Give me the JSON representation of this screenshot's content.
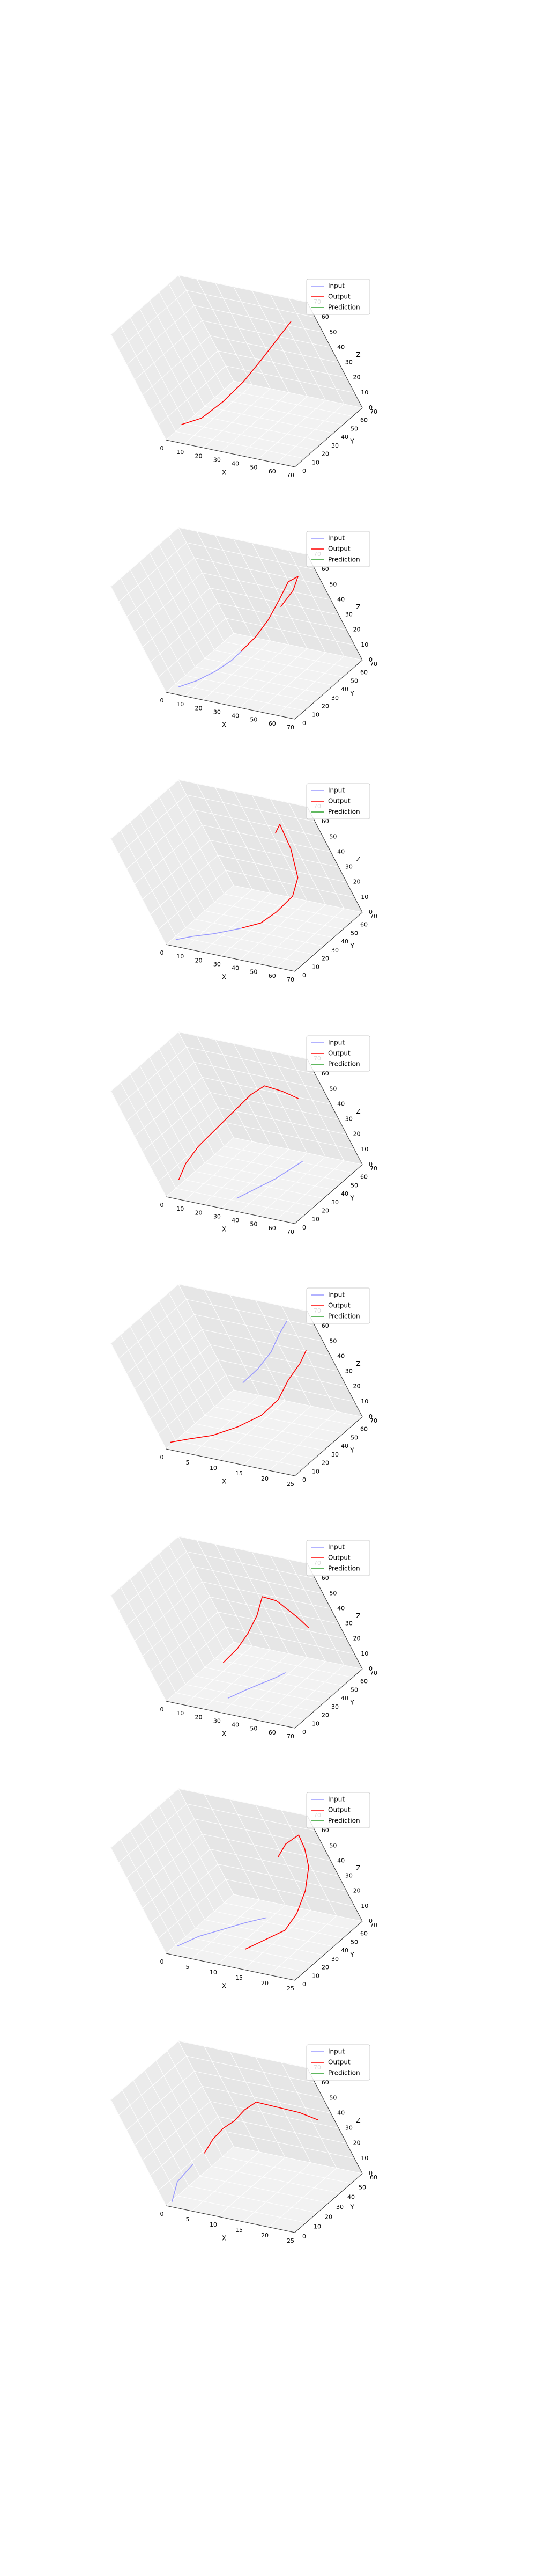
{
  "chart_data": [
    {
      "type": "line3d",
      "xlabel": "X",
      "ylabel": "Y",
      "zlabel": "Z",
      "xticks": [
        0,
        10,
        20,
        30,
        40,
        50,
        60,
        70
      ],
      "yticks": [
        0,
        10,
        20,
        30,
        40,
        50,
        60,
        70
      ],
      "zticks": [
        0,
        10,
        20,
        30,
        40,
        50,
        60,
        70
      ],
      "xlim": [
        0,
        70
      ],
      "ylim": [
        0,
        70
      ],
      "zlim": [
        0,
        70
      ],
      "legend": [
        "Input",
        "Output",
        "Prediction"
      ],
      "legend_position": "top-right",
      "grid": true,
      "series": [
        {
          "name": "Input",
          "color": "#9999ff",
          "points": []
        },
        {
          "name": "Output",
          "color": "#ff0000",
          "points": [
            [
              10,
              5,
              10
            ],
            [
              20,
              10,
              14
            ],
            [
              30,
              20,
              22
            ],
            [
              40,
              30,
              32
            ],
            [
              50,
              40,
              44
            ],
            [
              58,
              48,
              54
            ],
            [
              66,
              56,
              64
            ]
          ]
        },
        {
          "name": "Prediction",
          "color": "#2ca02c",
          "points": []
        }
      ]
    },
    {
      "type": "line3d",
      "xlabel": "X",
      "ylabel": "Y",
      "zlabel": "Z",
      "xticks": [
        0,
        10,
        20,
        30,
        40,
        50,
        60,
        70
      ],
      "yticks": [
        0,
        10,
        20,
        30,
        40,
        50,
        60,
        70
      ],
      "zticks": [
        0,
        10,
        20,
        30,
        40,
        50,
        60,
        70
      ],
      "xlim": [
        0,
        70
      ],
      "ylim": [
        0,
        70
      ],
      "zlim": [
        0,
        70
      ],
      "legend": [
        "Input",
        "Output",
        "Prediction"
      ],
      "legend_position": "top-right",
      "grid": true,
      "series": [
        {
          "name": "Input",
          "color": "#9999ff",
          "points": [
            [
              5,
              5,
              2
            ],
            [
              12,
              12,
              4
            ],
            [
              20,
              20,
              8
            ],
            [
              26,
              28,
              12
            ],
            [
              30,
              34,
              16
            ]
          ]
        },
        {
          "name": "Output",
          "color": "#ff0000",
          "points": [
            [
              30,
              34,
              16
            ],
            [
              38,
              40,
              24
            ],
            [
              46,
              46,
              34
            ],
            [
              54,
              52,
              46
            ],
            [
              60,
              58,
              56
            ],
            [
              66,
              60,
              60
            ],
            [
              62,
              56,
              52
            ],
            [
              56,
              48,
              44
            ]
          ]
        },
        {
          "name": "Prediction",
          "color": "#2ca02c",
          "points": []
        }
      ]
    },
    {
      "type": "line3d",
      "xlabel": "X",
      "ylabel": "Y",
      "zlabel": "Z",
      "xticks": [
        0,
        10,
        20,
        30,
        40,
        50,
        60,
        70
      ],
      "yticks": [
        0,
        10,
        20,
        30,
        40,
        50,
        60,
        70
      ],
      "zticks": [
        0,
        10,
        20,
        30,
        40,
        50,
        60,
        70
      ],
      "xlim": [
        0,
        70
      ],
      "ylim": [
        0,
        70
      ],
      "zlim": [
        0,
        70
      ],
      "legend": [
        "Input",
        "Output",
        "Prediction"
      ],
      "legend_position": "top-right",
      "grid": true,
      "series": [
        {
          "name": "Input",
          "color": "#9999ff",
          "points": [
            [
              4,
              4,
              2
            ],
            [
              12,
              8,
              4
            ],
            [
              22,
              12,
              6
            ],
            [
              30,
              16,
              8
            ],
            [
              36,
              18,
              10
            ]
          ]
        },
        {
          "name": "Output",
          "color": "#ff0000",
          "points": [
            [
              36,
              18,
              10
            ],
            [
              44,
              24,
              12
            ],
            [
              52,
              30,
              18
            ],
            [
              60,
              38,
              26
            ],
            [
              64,
              44,
              36
            ],
            [
              62,
              52,
              50
            ],
            [
              58,
              58,
              62
            ],
            [
              54,
              56,
              56
            ]
          ]
        },
        {
          "name": "Prediction",
          "color": "#2ca02c",
          "points": []
        }
      ]
    },
    {
      "type": "line3d",
      "xlabel": "X",
      "ylabel": "Y",
      "zlabel": "Z",
      "xticks": [
        0,
        10,
        20,
        30,
        40,
        50,
        60,
        70
      ],
      "yticks": [
        0,
        10,
        20,
        30,
        40,
        50,
        60,
        70
      ],
      "zticks": [
        0,
        10,
        20,
        30,
        40,
        50,
        60,
        70
      ],
      "xlim": [
        0,
        70
      ],
      "ylim": [
        0,
        70
      ],
      "zlim": [
        0,
        70
      ],
      "legend": [
        "Input",
        "Output",
        "Prediction"
      ],
      "legend_position": "top-right",
      "grid": true,
      "series": [
        {
          "name": "Input",
          "color": "#9999ff",
          "points": [
            [
              34,
              10,
              2
            ],
            [
              42,
              18,
              6
            ],
            [
              50,
              26,
              10
            ],
            [
              56,
              32,
              14
            ],
            [
              62,
              38,
              18
            ]
          ]
        },
        {
          "name": "Output",
          "color": "#ff0000",
          "points": [
            [
              8,
              6,
              10
            ],
            [
              14,
              10,
              20
            ],
            [
              22,
              16,
              30
            ],
            [
              32,
              24,
              40
            ],
            [
              42,
              32,
              50
            ],
            [
              50,
              40,
              58
            ],
            [
              56,
              46,
              62
            ],
            [
              60,
              52,
              56
            ],
            [
              64,
              56,
              50
            ]
          ]
        },
        {
          "name": "Prediction",
          "color": "#2ca02c",
          "points": []
        }
      ]
    },
    {
      "type": "line3d",
      "xlabel": "X",
      "ylabel": "Y",
      "zlabel": "Z",
      "xticks": [
        0,
        5,
        10,
        15,
        20,
        25
      ],
      "yticks": [
        0,
        10,
        20,
        30,
        40,
        50,
        60,
        70
      ],
      "zticks": [
        0,
        10,
        20,
        30,
        40,
        50,
        60,
        70
      ],
      "xlim": [
        0,
        25
      ],
      "ylim": [
        0,
        70
      ],
      "zlim": [
        0,
        70
      ],
      "legend": [
        "Input",
        "Output",
        "Prediction"
      ],
      "legend_position": "top-right",
      "grid": true,
      "series": [
        {
          "name": "Input",
          "color": "#9999ff",
          "points": [
            [
              12,
              40,
              30
            ],
            [
              15,
              46,
              38
            ],
            [
              18,
              52,
              48
            ],
            [
              20,
              58,
              58
            ],
            [
              22,
              62,
              66
            ]
          ]
        },
        {
          "name": "Output",
          "color": "#ff0000",
          "points": [
            [
              1,
              2,
              4
            ],
            [
              4,
              6,
              6
            ],
            [
              8,
              12,
              8
            ],
            [
              12,
              20,
              12
            ],
            [
              16,
              28,
              18
            ],
            [
              19,
              36,
              26
            ],
            [
              21,
              44,
              36
            ],
            [
              23,
              52,
              44
            ],
            [
              24,
              58,
              50
            ]
          ]
        },
        {
          "name": "Prediction",
          "color": "#2ca02c",
          "points": []
        }
      ]
    },
    {
      "type": "line3d",
      "xlabel": "X",
      "ylabel": "Y",
      "zlabel": "Z",
      "xticks": [
        0,
        10,
        20,
        30,
        40,
        50,
        60,
        70
      ],
      "yticks": [
        0,
        10,
        20,
        30,
        40,
        50,
        60,
        70
      ],
      "zticks": [
        0,
        10,
        20,
        30,
        40,
        50,
        60,
        70
      ],
      "xlim": [
        0,
        70
      ],
      "ylim": [
        0,
        70
      ],
      "zlim": [
        0,
        70
      ],
      "legend": [
        "Input",
        "Output",
        "Prediction"
      ],
      "legend_position": "top-right",
      "grid": true,
      "series": [
        {
          "name": "Input",
          "color": "#9999ff",
          "points": [
            [
              30,
              10,
              4
            ],
            [
              38,
              16,
              8
            ],
            [
              46,
              20,
              12
            ],
            [
              54,
              24,
              16
            ],
            [
              58,
              28,
              18
            ]
          ]
        },
        {
          "name": "Output",
          "color": "#ff0000",
          "points": [
            [
              30,
              20,
              22
            ],
            [
              38,
              26,
              30
            ],
            [
              46,
              30,
              40
            ],
            [
              52,
              36,
              50
            ],
            [
              56,
              42,
              60
            ],
            [
              60,
              46,
              56
            ],
            [
              64,
              50,
              44
            ],
            [
              66,
              52,
              36
            ]
          ]
        },
        {
          "name": "Prediction",
          "color": "#2ca02c",
          "points": []
        }
      ]
    },
    {
      "type": "line3d",
      "xlabel": "X",
      "ylabel": "Y",
      "zlabel": "Z",
      "xticks": [
        0,
        5,
        10,
        15,
        20,
        25
      ],
      "yticks": [
        0,
        10,
        20,
        30,
        40,
        50,
        60,
        70
      ],
      "zticks": [
        0,
        10,
        20,
        30,
        40,
        50,
        60,
        70
      ],
      "xlim": [
        0,
        25
      ],
      "ylim": [
        0,
        70
      ],
      "zlim": [
        0,
        70
      ],
      "legend": [
        "Input",
        "Output",
        "Prediction"
      ],
      "legend_position": "top-right",
      "grid": true,
      "series": [
        {
          "name": "Input",
          "color": "#9999ff",
          "points": [
            [
              2,
              4,
              4
            ],
            [
              6,
              10,
              10
            ],
            [
              10,
              16,
              14
            ],
            [
              14,
              22,
              18
            ],
            [
              18,
              26,
              22
            ]
          ]
        },
        {
          "name": "Output",
          "color": "#ff0000",
          "points": [
            [
              14,
              12,
              6
            ],
            [
              17,
              20,
              10
            ],
            [
              20,
              28,
              14
            ],
            [
              22,
              36,
              22
            ],
            [
              24,
              44,
              34
            ],
            [
              25,
              52,
              46
            ],
            [
              25,
              56,
              56
            ],
            [
              24,
              60,
              62
            ],
            [
              22,
              54,
              58
            ],
            [
              20,
              50,
              50
            ]
          ]
        },
        {
          "name": "Prediction",
          "color": "#2ca02c",
          "points": []
        }
      ]
    },
    {
      "type": "line3d",
      "xlabel": "X",
      "ylabel": "Y",
      "zlabel": "Z",
      "xticks": [
        0,
        5,
        10,
        15,
        20,
        25
      ],
      "yticks": [
        0,
        10,
        20,
        30,
        40,
        50,
        60
      ],
      "zticks": [
        0,
        10,
        20,
        30,
        40,
        50,
        60,
        70
      ],
      "xlim": [
        0,
        25
      ],
      "ylim": [
        0,
        60
      ],
      "zlim": [
        0,
        70
      ],
      "legend": [
        "Input",
        "Output",
        "Prediction"
      ],
      "legend_position": "top-right",
      "grid": true,
      "series": [
        {
          "name": "Input",
          "color": "#9999ff",
          "points": [
            [
              1,
              2,
              2
            ],
            [
              2,
              4,
              8
            ],
            [
              3,
              6,
              14
            ],
            [
              5,
              8,
              20
            ],
            [
              7,
              10,
              26
            ]
          ]
        },
        {
          "name": "Output",
          "color": "#ff0000",
          "points": [
            [
              10,
              12,
              34
            ],
            [
              12,
              16,
              42
            ],
            [
              14,
              20,
              48
            ],
            [
              16,
              24,
              52
            ],
            [
              18,
              28,
              58
            ],
            [
              20,
              32,
              62
            ],
            [
              22,
              38,
              56
            ],
            [
              24,
              44,
              50
            ],
            [
              25,
              50,
              42
            ]
          ]
        },
        {
          "name": "Prediction",
          "color": "#2ca02c",
          "points": []
        }
      ]
    }
  ]
}
